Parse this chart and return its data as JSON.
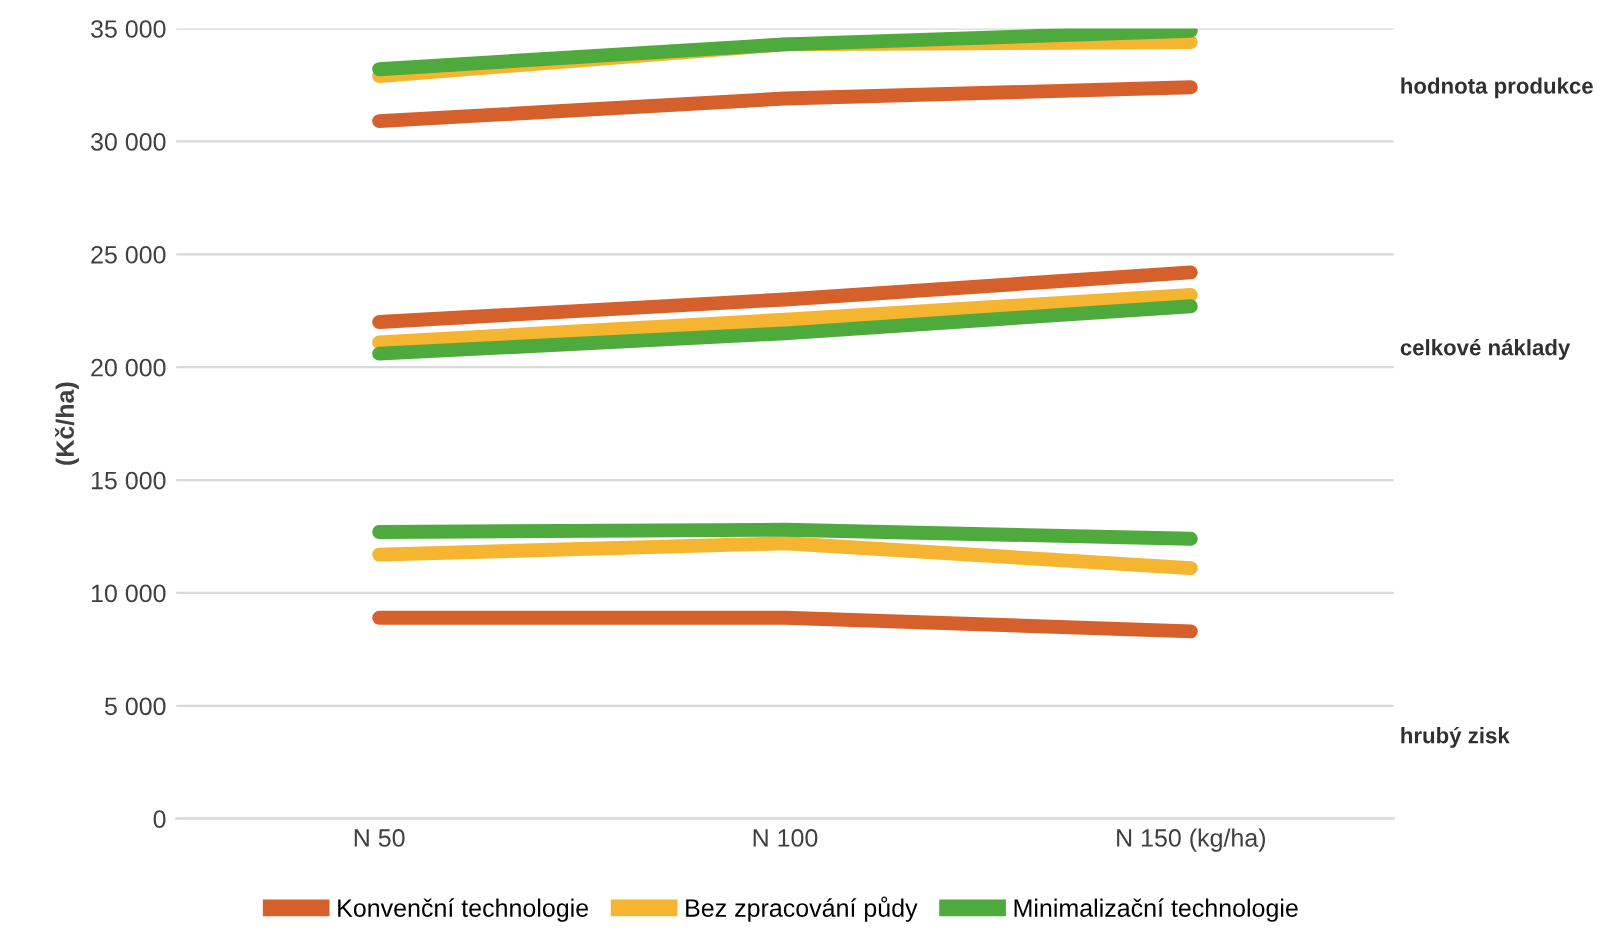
{
  "chart_data": {
    "type": "line",
    "ylabel": "(Kč/ha)",
    "categories": [
      "N 50",
      "N 100",
      "N 150 (kg/ha)"
    ],
    "series": [
      {
        "name": "Konvenční technologie",
        "color": "#d6602b",
        "values": [
          30900,
          31900,
          32400
        ]
      },
      {
        "name": "Bez zpracování půdy",
        "color": "#f5b530",
        "values": [
          32900,
          34300,
          34400
        ]
      },
      {
        "name": "Minimalizační technologie",
        "color": "#4eaa3c",
        "values": [
          33200,
          34300,
          34900
        ]
      },
      {
        "color": "#d6602b",
        "values": [
          22000,
          23000,
          24200
        ]
      },
      {
        "color": "#f5b530",
        "values": [
          21100,
          22100,
          23200
        ]
      },
      {
        "color": "#4eaa3c",
        "values": [
          20600,
          21500,
          22700
        ]
      },
      {
        "color": "#d6602b",
        "values": [
          8900,
          8900,
          8300
        ]
      },
      {
        "color": "#f5b530",
        "values": [
          11700,
          12200,
          11100
        ]
      },
      {
        "color": "#4eaa3c",
        "values": [
          12700,
          12800,
          12400
        ]
      }
    ],
    "annotations": [
      "hodnota produkce",
      "celkové náklady",
      "hrubý zisk"
    ],
    "ylim": [
      0,
      35000
    ],
    "yticks": [
      {
        "value": 0,
        "label": "0"
      },
      {
        "value": 5000,
        "label": "5 000"
      },
      {
        "value": 10000,
        "label": "10 000"
      },
      {
        "value": 15000,
        "label": "15 000"
      },
      {
        "value": 20000,
        "label": "20 000"
      },
      {
        "value": 25000,
        "label": "25 000"
      },
      {
        "value": 30000,
        "label": "30 000"
      },
      {
        "value": 35000,
        "label": "35 000"
      }
    ],
    "grid": "y",
    "legend": "bottom",
    "marker": "none",
    "line_style": "solid"
  }
}
